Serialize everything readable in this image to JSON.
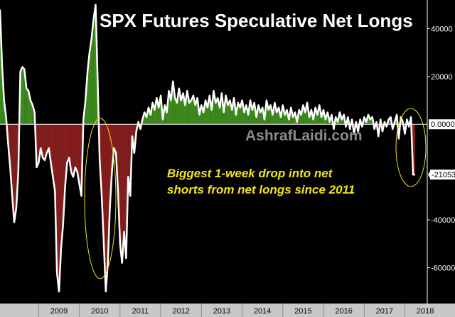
{
  "chart_data": {
    "type": "area",
    "title": "SPX Futures Speculative Net Longs",
    "watermark": "AshrafLaidi.com",
    "annotations": [
      "Biggest 1-week drop into net",
      "shorts from net longs since 2011"
    ],
    "last_value_label": "-21053",
    "zero_label": "0.0000",
    "x_ticks": [
      "2009",
      "2010",
      "2011",
      "2012",
      "2013",
      "2014",
      "2015",
      "2016",
      "2017",
      "2018"
    ],
    "y_ticks": [
      {
        "value": 40000,
        "label": "40000"
      },
      {
        "value": 20000,
        "label": "20000"
      },
      {
        "value": -40000,
        "label": "-40000"
      },
      {
        "value": -60000,
        "label": "-60000"
      }
    ],
    "ylim": [
      -75000,
      52000
    ],
    "xlim": [
      2008.05,
      2018.55
    ],
    "colors": {
      "positive_fill": "#3e8a1e",
      "negative_fill": "#861e1e",
      "line": "#ffffff",
      "background": "#000000",
      "axis_bar": "#c8c8c8",
      "highlight": "#f2e51a"
    },
    "series": [
      {
        "x": [
          2008.05,
          2008.1,
          2008.15,
          2008.2,
          2008.25,
          2008.3,
          2008.35,
          2008.4,
          2008.45,
          2008.5,
          2008.55,
          2008.6,
          2008.65,
          2008.7,
          2008.75,
          2008.8,
          2008.85,
          2008.9,
          2008.95,
          2009.0,
          2009.05,
          2009.1,
          2009.15,
          2009.2,
          2009.25,
          2009.3,
          2009.35,
          2009.4,
          2009.45,
          2009.5,
          2009.55,
          2009.6,
          2009.65,
          2009.7,
          2009.75,
          2009.8,
          2009.85,
          2009.9,
          2009.95,
          2010.0,
          2010.05,
          2010.1,
          2010.15,
          2010.2,
          2010.25,
          2010.3,
          2010.35,
          2010.4,
          2010.45,
          2010.5,
          2010.55,
          2010.6,
          2010.65,
          2010.7,
          2010.75,
          2010.8,
          2010.85,
          2010.9,
          2010.95,
          2011.0,
          2011.05,
          2011.1,
          2011.15,
          2011.2,
          2011.25,
          2011.3,
          2011.35,
          2011.4,
          2011.45,
          2011.5,
          2011.55,
          2011.6,
          2011.65,
          2011.7,
          2011.75,
          2011.8,
          2011.85,
          2011.9,
          2011.95,
          2012.0,
          2012.05,
          2012.1,
          2012.15,
          2012.2,
          2012.25,
          2012.3,
          2012.35,
          2012.4,
          2012.45,
          2012.5,
          2012.55,
          2012.6,
          2012.65,
          2012.7,
          2012.75,
          2012.8,
          2012.85,
          2012.9,
          2012.95,
          2013.0,
          2013.05,
          2013.1,
          2013.15,
          2013.2,
          2013.25,
          2013.3,
          2013.35,
          2013.4,
          2013.45,
          2013.5,
          2013.55,
          2013.6,
          2013.65,
          2013.7,
          2013.75,
          2013.8,
          2013.85,
          2013.9,
          2013.95,
          2014.0,
          2014.05,
          2014.1,
          2014.15,
          2014.2,
          2014.25,
          2014.3,
          2014.35,
          2014.4,
          2014.45,
          2014.5,
          2014.55,
          2014.6,
          2014.65,
          2014.7,
          2014.75,
          2014.8,
          2014.85,
          2014.9,
          2014.95,
          2015.0,
          2015.05,
          2015.1,
          2015.15,
          2015.2,
          2015.25,
          2015.3,
          2015.35,
          2015.4,
          2015.45,
          2015.5,
          2015.55,
          2015.6,
          2015.65,
          2015.7,
          2015.75,
          2015.8,
          2015.85,
          2015.9,
          2015.95,
          2016.0,
          2016.05,
          2016.1,
          2016.15,
          2016.2,
          2016.25,
          2016.3,
          2016.35,
          2016.4,
          2016.45,
          2016.5,
          2016.55,
          2016.6,
          2016.65,
          2016.7,
          2016.75,
          2016.8,
          2016.85,
          2016.9,
          2016.95,
          2017.0,
          2017.05,
          2017.1,
          2017.15,
          2017.2,
          2017.25,
          2017.3,
          2017.35,
          2017.4,
          2017.45,
          2017.5,
          2017.55,
          2017.6,
          2017.65,
          2017.7,
          2017.75,
          2017.8,
          2017.85,
          2017.9,
          2017.95,
          2018.0,
          2018.05,
          2018.1,
          2018.15,
          2018.2,
          2018.25
        ],
        "values": [
          48000,
          25000,
          10000,
          3000,
          -8000,
          -18000,
          -30000,
          -41000,
          -35000,
          -20000,
          22000,
          24000,
          23000,
          15000,
          14000,
          10000,
          8000,
          5000,
          -18000,
          -16000,
          -10000,
          -14000,
          -15000,
          -12000,
          -10000,
          -16000,
          -22000,
          -28000,
          -62000,
          -70000,
          -52000,
          -42000,
          -26000,
          -16000,
          -14000,
          -20000,
          -22000,
          -18000,
          -20000,
          -25000,
          -30000,
          2000,
          10000,
          22000,
          30000,
          36000,
          44000,
          50000,
          18000,
          -15000,
          -30000,
          -50000,
          -70000,
          -58000,
          -35000,
          -20000,
          -10000,
          -12000,
          -28000,
          -50000,
          -58000,
          -45000,
          -56000,
          -22000,
          -30000,
          -5000,
          -12000,
          -3000,
          1000,
          -2000,
          2000,
          5000,
          3000,
          7000,
          4000,
          9000,
          6000,
          11000,
          7000,
          12000,
          2000,
          8000,
          5000,
          14000,
          10000,
          18000,
          11000,
          9000,
          15000,
          10000,
          13000,
          8000,
          14000,
          9000,
          10000,
          12000,
          8000,
          11000,
          4000,
          8000,
          5000,
          10000,
          7000,
          12000,
          6000,
          14000,
          9000,
          11000,
          7000,
          13000,
          5000,
          12000,
          8000,
          10000,
          6000,
          11000,
          4000,
          9000,
          7000,
          10000,
          5000,
          8000,
          4000,
          10000,
          6000,
          9000,
          3000,
          8000,
          5000,
          7000,
          2000,
          10000,
          6000,
          8000,
          4000,
          9000,
          5000,
          7000,
          3000,
          8000,
          4000,
          6000,
          2000,
          7000,
          3000,
          5000,
          1000,
          6000,
          4000,
          8000,
          5000,
          9000,
          3000,
          6000,
          2000,
          7000,
          4000,
          8000,
          3000,
          6000,
          2000,
          5000,
          1000,
          4000,
          -2000,
          3000,
          1000,
          5000,
          2000,
          4000,
          -1000,
          3000,
          -2000,
          2000,
          -4000,
          1000,
          -3000,
          2000,
          -1000,
          3000,
          1000,
          4000,
          2000,
          3000,
          -2000,
          1000,
          -5000,
          2000,
          -3000,
          1000,
          -1000,
          2000,
          3000,
          -2000,
          1000,
          4000,
          -6000,
          3000,
          1000,
          -4000,
          2000,
          -1000,
          3000,
          -21053,
          -21053
        ]
      }
    ]
  }
}
